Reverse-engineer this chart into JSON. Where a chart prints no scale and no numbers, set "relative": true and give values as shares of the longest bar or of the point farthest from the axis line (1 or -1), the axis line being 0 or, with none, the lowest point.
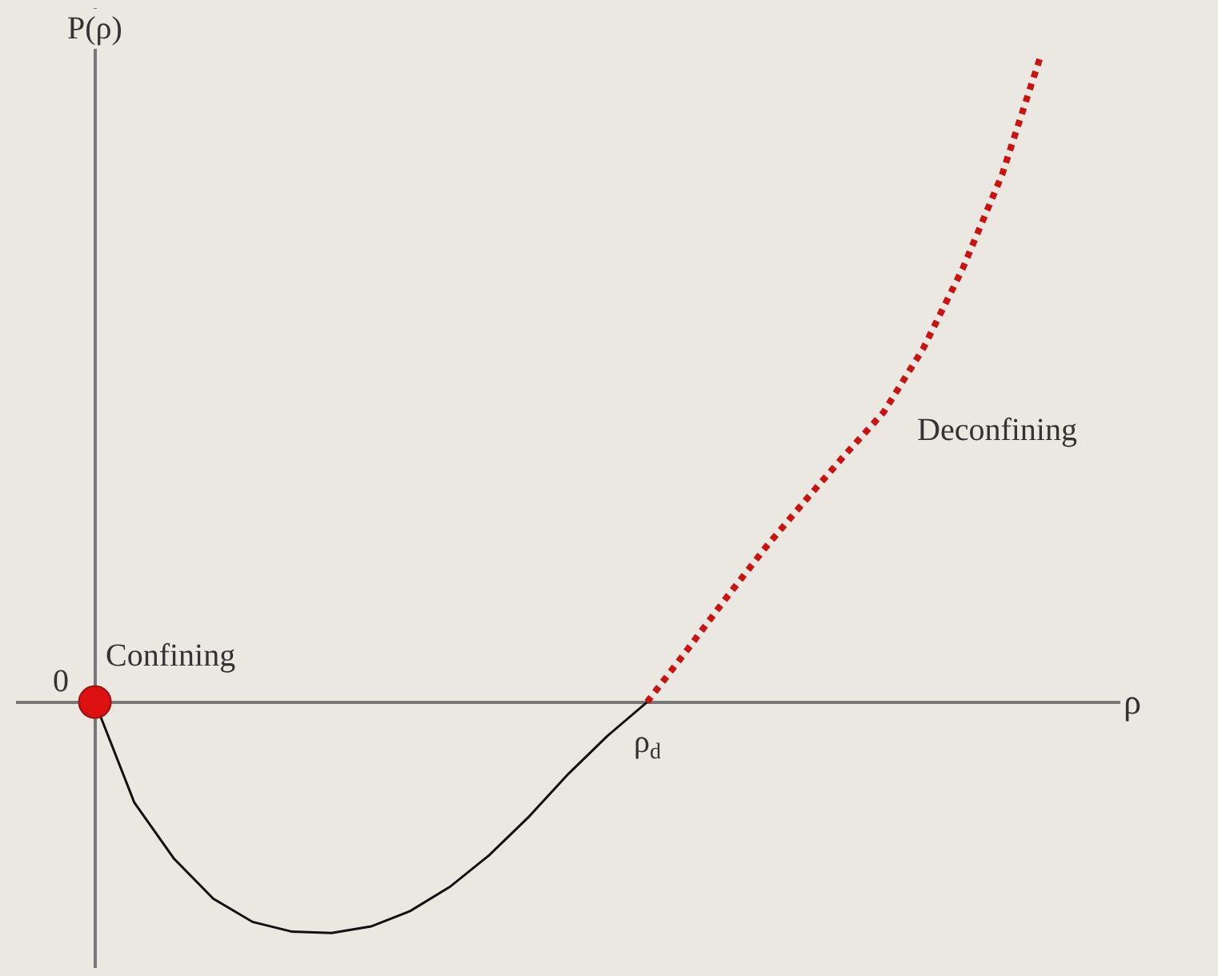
{
  "chart_data": {
    "type": "line",
    "relative": true,
    "xlabel": "ρ",
    "ylabel": "P(ρ)",
    "tick_labels": false,
    "grid": false,
    "legend": false,
    "categories": [
      null,
      null,
      null,
      null,
      null,
      null,
      null,
      null,
      null,
      null,
      null,
      null,
      null,
      null,
      null,
      null,
      null,
      null,
      null,
      null,
      null,
      null,
      null,
      null,
      null
    ],
    "series": [
      {
        "color": "#111111",
        "line_style": "solid",
        "values": [
          0,
          -0.155,
          -0.241,
          -0.303,
          -0.339,
          -0.354,
          -0.356,
          -0.346,
          -0.322,
          -0.285,
          -0.236,
          -0.177,
          -0.111,
          -0.052,
          0,
          null,
          null,
          null,
          null,
          null,
          null,
          null,
          null,
          null,
          null
        ]
      },
      {
        "color": "#cc1111",
        "line_style": "dotted",
        "values": [
          null,
          null,
          null,
          null,
          null,
          null,
          null,
          null,
          null,
          null,
          null,
          null,
          null,
          null,
          0,
          0.079,
          0.16,
          0.238,
          0.31,
          0.38,
          0.447,
          0.545,
          0.668,
          0.813,
          1.0
        ]
      }
    ],
    "annotations": [
      "0",
      "Confining",
      "ρ$_{d}$",
      "Deconfining"
    ]
  }
}
